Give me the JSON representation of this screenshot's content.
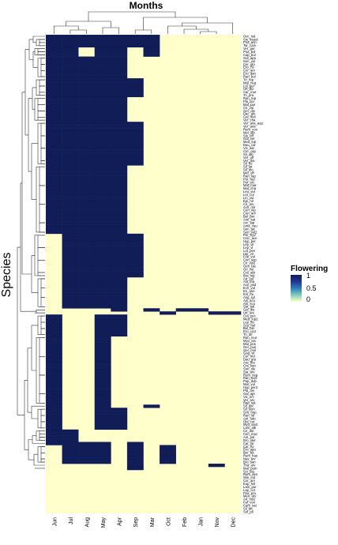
{
  "chart_data": {
    "type": "heatmap",
    "title": "Months",
    "xlabel": "",
    "ylabel": "Species",
    "x_categories": [
      "Jun",
      "Jul",
      "Aug",
      "May",
      "Apr",
      "Sep",
      "Mar",
      "Oct",
      "Feb",
      "Jan",
      "Nov",
      "Dec"
    ],
    "y_categories": [
      "Ovc_ind",
      "Sis_lnaed",
      "Poa_ann",
      "Tar_cam",
      "Ver_per",
      "Poa_bul",
      "Cap_bur",
      "Gal_apa",
      "Sen_vul",
      "Cer_glo",
      "Ero_cic",
      "Cer_arv",
      "Ero_dan",
      "Ran_bul",
      "Tri_rep",
      "Mal_neg",
      "Lol_per",
      "Urt_dio",
      "Car_mur",
      "Tri_pra",
      "Ran_rep",
      "Pla_lan",
      "Mal_par",
      "Cir_vul",
      "Ger_dis",
      "Dac_glo",
      "Gal_mol",
      "Ver_cha",
      "Ver_ana_aqu",
      "Ver_ana",
      "Rum_con",
      "Mel_alb",
      "Sis_off",
      "Gal_ver",
      "Med_lup",
      "Dau_car",
      "Vic_sat",
      "Cre_cap",
      "Sil_alb",
      "Ver_off",
      "Ver_tha",
      "Sil_flo",
      "Sil_lat",
      "Sil_dio",
      "Mel_off",
      "Ran_lag",
      "Pot_rep",
      "Pot_erc",
      "Mat_mar",
      "Mat_cha",
      "Leu_vul",
      "Lot_cor",
      "Lin_vul",
      "Epi_hir",
      "Cir_arv",
      "Ach_mil",
      "Cen_nig",
      "Con_arv",
      "Bel_per",
      "Ave_sat",
      "Arc_lap",
      "Ama_cau",
      "Sen_jac",
      "Sen_vul2",
      "Per_hyd",
      "Cnic_ace",
      "Hyp_per",
      "Lep_vir",
      "Lep_vl",
      "Lot_pen",
      "Hip_vir",
      "Foe_vul",
      "Con_sep",
      "Cir_vul2",
      "Oen_bie",
      "Ori_vul",
      "Cra_atb",
      "Bra_nig",
      "Art_vul",
      "Alu_tha",
      "Ace_psd",
      "Ech_vul",
      "Eri_ann",
      "Ein_ftu",
      "Ang_syl",
      "Ajs_acu",
      "Ast_sco",
      "Sta_pal",
      "Gal_dis",
      "Urt_ure",
      "Cra_pec",
      "Med_lup2",
      "Lep_flo",
      "Sco_hel",
      "Bel_ber",
      "Ero_cic2",
      "Tri_dif",
      "Ran_mur",
      "Myo_arv",
      "Mal_pos",
      "Ger_pus",
      "Ger_mol",
      "Gag_vir",
      "Cur_ind",
      "Dau_gra",
      "Ara_tha",
      "Cra_kan",
      "Son_ole",
      "Sta_arv",
      "Rum_nep",
      "Ran_scel",
      "Pap_dub",
      "Mar_vul",
      "Hyp_per2",
      "Pla_arv",
      "Gal_apt",
      "Vic_ert",
      "Ver_arv",
      "Rap_sat",
      "Sil_gal",
      "Sil_sion",
      "Sco_hop",
      "Ran_lol",
      "Ant_odo",
      "Ola_cor",
      "Myo_arv2",
      "Lam_alb",
      "Cir_del",
      "Con_mac",
      "Ant_pol",
      "Bro_ster",
      "Car_hir",
      "Car_flo",
      "Ero_agu",
      "Ber_ba",
      "Rum_has",
      "Nas_arv",
      "Bro_san",
      "Tha_arv",
      "Mat_pum",
      "Sci_ela",
      "Rum_den",
      "Wie_ind",
      "Cor_arv",
      "Eup_hel",
      "Lam_pur",
      "Lap_cor",
      "Poa_pra",
      "Men_arv",
      "Art_vul2",
      "Fal_con",
      "Cam_sat",
      "Sil_bic",
      "Sol_pil"
    ],
    "z_min": 0,
    "z_max": 1,
    "legend": {
      "title": "Flowering",
      "ticks": [
        "1",
        "0.5",
        "0"
      ],
      "placement": "right"
    },
    "colors": {
      "high": "#111d57",
      "mid": "#2c7fb8",
      "low": "#edf8b1",
      "background": "#ffffcc"
    },
    "grid": false,
    "row_groups": [
      {
        "rows": "0-0",
        "flowering": [
          "Jun",
          "Jul",
          "Aug",
          "May",
          "Apr",
          "Sep",
          "Mar"
        ]
      },
      {
        "rows": "1-3",
        "flowering": [
          "Jun",
          "Jul",
          "Aug",
          "May",
          "Apr",
          "Sep",
          "Mar"
        ]
      },
      {
        "rows": "4-6",
        "flowering": [
          "Jun",
          "Jul",
          "May",
          "Apr",
          "Mar"
        ]
      },
      {
        "rows": "7-13",
        "flowering": [
          "Jun",
          "Jul",
          "Aug",
          "May",
          "Apr"
        ]
      },
      {
        "rows": "14-19",
        "flowering": [
          "Jun",
          "Jul",
          "Aug",
          "May",
          "Apr",
          "Sep"
        ]
      },
      {
        "rows": "20-27",
        "flowering": [
          "Jun",
          "Jul",
          "Aug",
          "May",
          "Apr"
        ]
      },
      {
        "rows": "28-41",
        "flowering": [
          "Jun",
          "Jul",
          "Aug",
          "May",
          "Apr",
          "Sep"
        ]
      },
      {
        "rows": "42-63",
        "flowering": [
          "Jun",
          "Jul",
          "Aug",
          "May",
          "Apr"
        ]
      },
      {
        "rows": "64-77",
        "flowering": [
          "Jul",
          "Aug",
          "May",
          "Apr",
          "Sep"
        ]
      },
      {
        "rows": "78-87",
        "flowering": [
          "Jul",
          "Aug",
          "May",
          "Apr"
        ]
      },
      {
        "rows": "88-88",
        "flowering": [
          "Apr",
          "Mar",
          "Feb",
          "Jan"
        ]
      },
      {
        "rows": "89-89",
        "flowering": [
          "Oct",
          "Nov",
          "Dec"
        ]
      },
      {
        "rows": "90-96",
        "flowering": [
          "Jun",
          "May",
          "Apr"
        ]
      },
      {
        "rows": "97-118",
        "flowering": [
          "Jun",
          "May"
        ]
      },
      {
        "rows": "119-119",
        "flowering": [
          "Jun",
          "May",
          "Mar"
        ]
      },
      {
        "rows": "120-126",
        "flowering": [
          "Jun",
          "May",
          "Apr"
        ]
      },
      {
        "rows": "127-130",
        "flowering": [
          "Jun",
          "Jul"
        ]
      },
      {
        "rows": "131-131",
        "flowering": [
          "Jun",
          "Jul",
          "Aug",
          "May",
          "Sep"
        ]
      },
      {
        "rows": "132-137",
        "flowering": [
          "Jul",
          "Aug",
          "May",
          "Sep",
          "Oct"
        ]
      },
      {
        "rows": "138-138",
        "flowering": [
          "Sep",
          "Nov"
        ]
      },
      {
        "rows": "139-139",
        "flowering": [
          "Sep"
        ]
      }
    ]
  }
}
